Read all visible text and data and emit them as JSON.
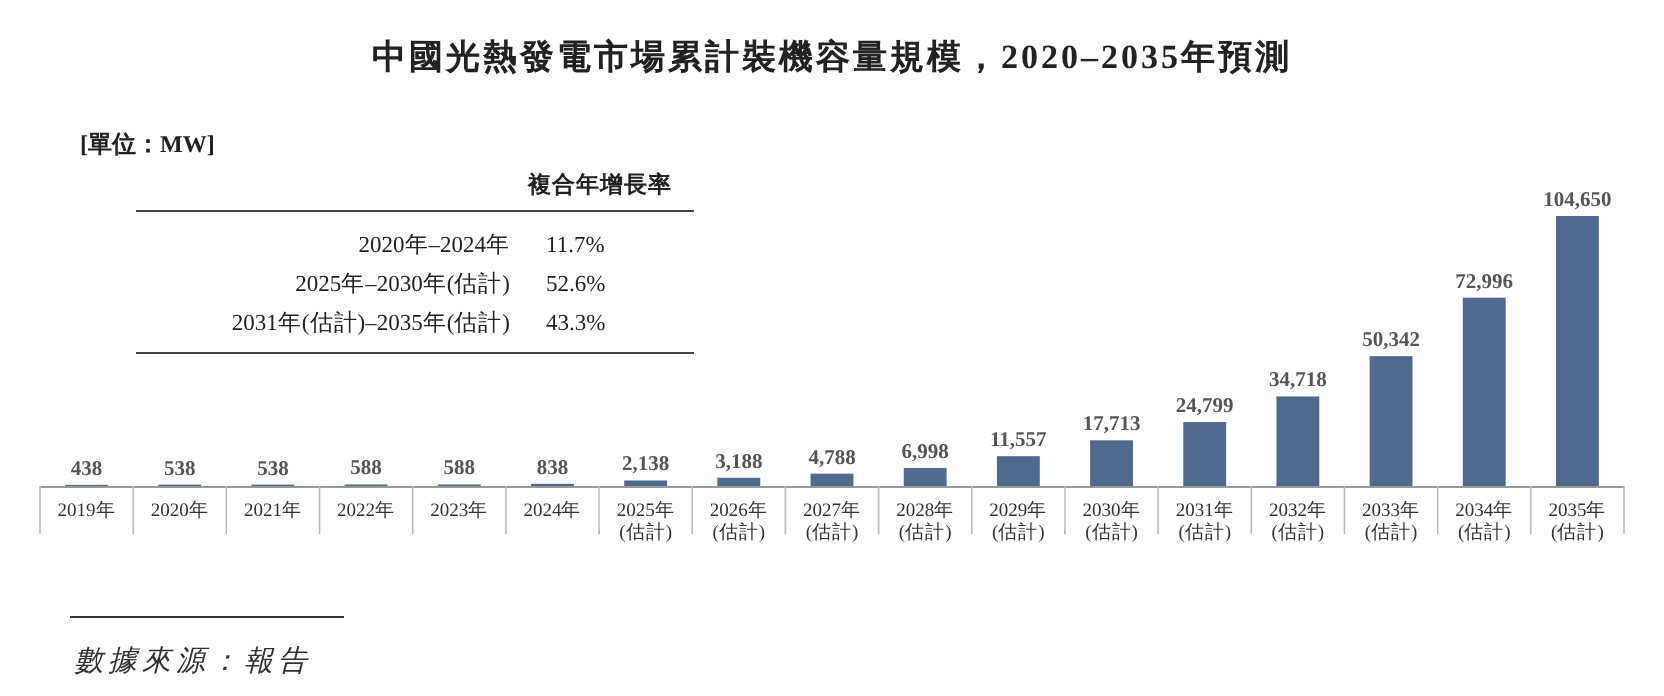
{
  "chart_data": {
    "type": "bar",
    "title": "中國光熱發電市場累計裝機容量規模，2020–2035年預測",
    "categories": [
      "2019年",
      "2020年",
      "2021年",
      "2022年",
      "2023年",
      "2024年",
      "2025年\n(估計)",
      "2026年\n(估計)",
      "2027年\n(估計)",
      "2028年\n(估計)",
      "2029年\n(估計)",
      "2030年\n(估計)",
      "2031年\n(估計)",
      "2032年\n(估計)",
      "2033年\n(估計)",
      "2034年\n(估計)",
      "2035年\n(估計)"
    ],
    "values": [
      438,
      538,
      538,
      588,
      588,
      838,
      2138,
      3188,
      4788,
      6998,
      11557,
      17713,
      24799,
      34718,
      50342,
      72996,
      104650
    ],
    "value_labels": [
      "438",
      "538",
      "538",
      "588",
      "588",
      "838",
      "2,138",
      "3,188",
      "4,788",
      "6,998",
      "11,557",
      "17,713",
      "24,799",
      "34,718",
      "50,342",
      "72,996",
      "104,650"
    ],
    "color": "#4e6a8f",
    "annotations": [
      "[單位：MW]",
      "複合年增長率",
      "2020年–2024年",
      "11.7%",
      "2025年–2030年(估計)",
      "52.6%",
      "2031年(估計)–2035年(估計)",
      "43.3%",
      "數據來源：報告"
    ]
  }
}
